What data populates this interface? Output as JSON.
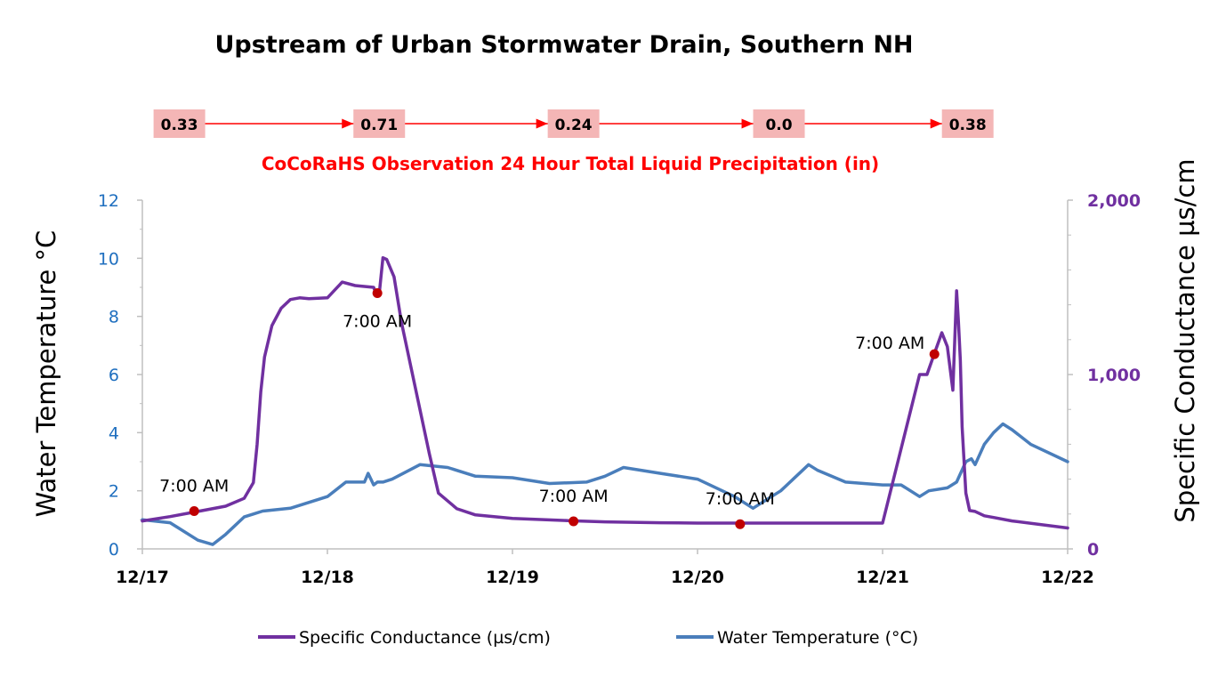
{
  "chart_data": {
    "type": "line",
    "title": "Upstream of Urban Stormwater Drain, Southern NH",
    "precip_title": "CoCoRaHS Observation 24 Hour Total Liquid Precipitation (in)",
    "precipitation": [
      {
        "x": 0.2,
        "label": "0.33"
      },
      {
        "x": 1.28,
        "label": "0.71"
      },
      {
        "x": 2.33,
        "label": "0.24"
      },
      {
        "x": 3.44,
        "label": "0.0"
      },
      {
        "x": 4.46,
        "label": "0.38"
      }
    ],
    "x_ticks": [
      "12/17",
      "12/18",
      "12/19",
      "12/20",
      "12/21",
      "12/22"
    ],
    "xlim": [
      0,
      5
    ],
    "ylabel": "Water Temperature °C",
    "ylim": [
      0,
      12
    ],
    "y_ticks": [
      "0",
      "2",
      "4",
      "6",
      "8",
      "10",
      "12"
    ],
    "y2label": "Specific Conductance µs/cm",
    "y2lim": [
      0,
      2000
    ],
    "y2_ticks": [
      "0",
      "1,000",
      "2,000"
    ],
    "series": [
      {
        "name": "Specific Conductance (µs/cm)",
        "axis": "right",
        "color": "#7030a0",
        "x": [
          0,
          0.15,
          0.3,
          0.45,
          0.55,
          0.6,
          0.62,
          0.64,
          0.66,
          0.7,
          0.75,
          0.8,
          0.85,
          0.9,
          1.0,
          1.08,
          1.15,
          1.25,
          1.26,
          1.27,
          1.28,
          1.3,
          1.32,
          1.36,
          1.4,
          1.45,
          1.5,
          1.55,
          1.6,
          1.7,
          1.8,
          2.0,
          2.3,
          2.5,
          2.8,
          3.0,
          3.3,
          3.6,
          4.0,
          4.2,
          4.24,
          4.28,
          4.32,
          4.35,
          4.38,
          4.4,
          4.41,
          4.42,
          4.43,
          4.45,
          4.47,
          4.5,
          4.55,
          4.6,
          4.7,
          5.0
        ],
        "values": [
          160,
          185,
          215,
          245,
          290,
          380,
          600,
          900,
          1100,
          1280,
          1380,
          1430,
          1440,
          1435,
          1440,
          1530,
          1510,
          1500,
          1470,
          1460,
          1460,
          1670,
          1660,
          1560,
          1300,
          1050,
          800,
          550,
          320,
          230,
          195,
          175,
          162,
          155,
          150,
          148,
          148,
          148,
          148,
          1000,
          1000,
          1120,
          1240,
          1160,
          910,
          1480,
          1300,
          1080,
          700,
          320,
          220,
          215,
          190,
          180,
          160,
          120
        ]
      },
      {
        "name": "Water Temperature (°C)",
        "axis": "left",
        "color": "#4a7ebb",
        "x": [
          0,
          0.15,
          0.2,
          0.3,
          0.38,
          0.45,
          0.55,
          0.6,
          0.65,
          0.8,
          1.0,
          1.1,
          1.2,
          1.22,
          1.25,
          1.27,
          1.29,
          1.3,
          1.35,
          1.5,
          1.65,
          1.8,
          2.0,
          2.2,
          2.4,
          2.5,
          2.6,
          2.8,
          3.0,
          3.2,
          3.3,
          3.4,
          3.45,
          3.6,
          3.65,
          3.8,
          4.0,
          4.1,
          4.2,
          4.25,
          4.35,
          4.4,
          4.45,
          4.48,
          4.5,
          4.55,
          4.6,
          4.65,
          4.7,
          4.8,
          5.0
        ],
        "values": [
          1.0,
          0.9,
          0.7,
          0.3,
          0.15,
          0.5,
          1.1,
          1.2,
          1.3,
          1.4,
          1.8,
          2.3,
          2.3,
          2.6,
          2.2,
          2.3,
          2.3,
          2.3,
          2.4,
          2.9,
          2.8,
          2.5,
          2.45,
          2.25,
          2.3,
          2.5,
          2.8,
          2.6,
          2.4,
          1.8,
          1.4,
          1.8,
          2.0,
          2.9,
          2.7,
          2.3,
          2.2,
          2.2,
          1.8,
          2.0,
          2.1,
          2.3,
          3.0,
          3.1,
          2.9,
          3.6,
          4.0,
          4.3,
          4.1,
          3.6,
          3.0
        ]
      }
    ],
    "annotations": [
      {
        "x": 0.28,
        "y": 1.3,
        "label": "7:00 AM",
        "dot_color": "#c00000"
      },
      {
        "x": 1.27,
        "y": 8.8,
        "label": "7:00 AM",
        "dot_color": "#c00000"
      },
      {
        "x": 2.33,
        "y": 0.95,
        "label": "7:00 AM",
        "dot_color": "#c00000"
      },
      {
        "x": 3.23,
        "y": 0.85,
        "label": "7:00 AM",
        "dot_color": "#c00000"
      },
      {
        "x": 4.28,
        "y": 6.7,
        "label": "7:00 AM",
        "dot_color": "#c00000"
      }
    ],
    "legend": [
      "Specific Conductance (µs/cm)",
      "Water Temperature (°C)"
    ],
    "legend_position": "bottom",
    "colors": {
      "precip_box": "#f4b6b6",
      "precip_arrow": "#ff0000",
      "left_ticks": "#1f6fbf",
      "right_ticks": "#7030a0"
    }
  }
}
